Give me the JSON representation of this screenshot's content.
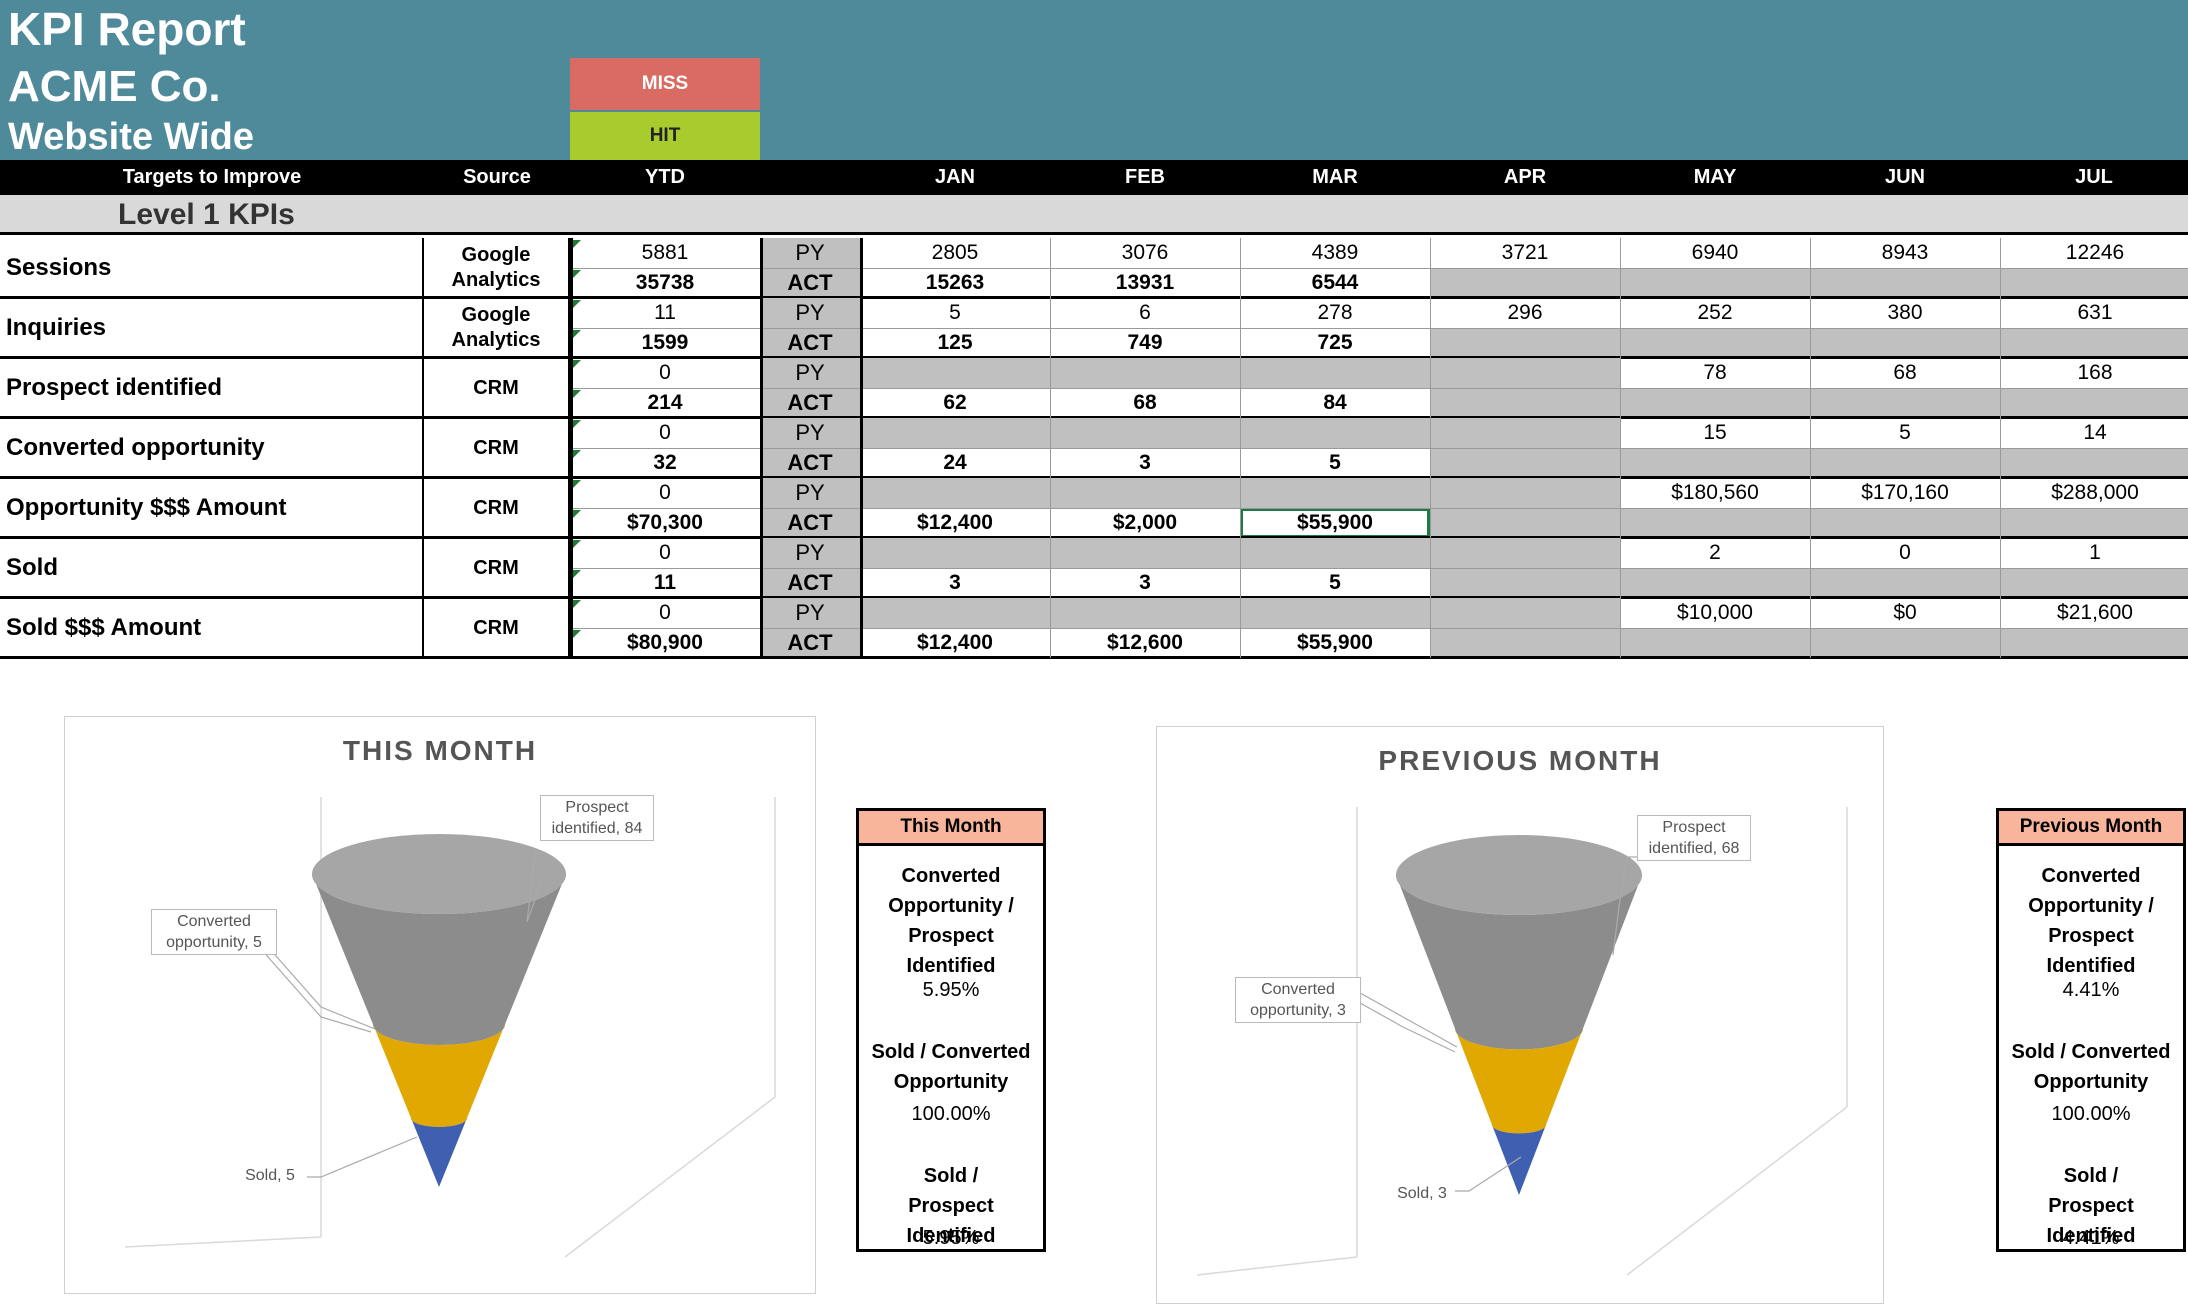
{
  "header": {
    "title": "KPI Report",
    "company": "ACME Co.",
    "scope": "Website Wide",
    "legend_miss": "MISS",
    "legend_hit": "HIT"
  },
  "columns": {
    "targets": "Targets to Improve",
    "source": "Source",
    "ytd": "YTD",
    "months": [
      "JAN",
      "FEB",
      "MAR",
      "APR",
      "MAY",
      "JUN",
      "JUL"
    ]
  },
  "section": "Level 1 KPIs",
  "rows": [
    {
      "metric": "Sessions",
      "source": "Google Analytics",
      "ytd_py": "5881",
      "ytd_act": "35738",
      "py_label": "PY",
      "act_label": "ACT",
      "py": [
        "2805",
        "3076",
        "4389",
        "3721",
        "6940",
        "8943",
        "12246"
      ],
      "act": [
        "15263",
        "13931",
        "6544",
        "",
        "",
        "",
        ""
      ]
    },
    {
      "metric": "Inquiries",
      "source": "Google Analytics",
      "ytd_py": "11",
      "ytd_act": "1599",
      "py_label": "PY",
      "act_label": "ACT",
      "py": [
        "5",
        "6",
        "278",
        "296",
        "252",
        "380",
        "631"
      ],
      "act": [
        "125",
        "749",
        "725",
        "",
        "",
        "",
        ""
      ]
    },
    {
      "metric": "Prospect identified",
      "source": "CRM",
      "ytd_py": "0",
      "ytd_act": "214",
      "py_label": "PY",
      "act_label": "ACT",
      "py": [
        "",
        "",
        "",
        "",
        "78",
        "68",
        "168"
      ],
      "act": [
        "62",
        "68",
        "84",
        "",
        "",
        "",
        ""
      ]
    },
    {
      "metric": "Converted opportunity",
      "source": "CRM",
      "ytd_py": "0",
      "ytd_act": "32",
      "py_label": "PY",
      "act_label": "ACT",
      "py": [
        "",
        "",
        "",
        "",
        "15",
        "5",
        "14"
      ],
      "act": [
        "24",
        "3",
        "5",
        "",
        "",
        "",
        ""
      ]
    },
    {
      "metric": "Opportunity $$$ Amount",
      "source": "CRM",
      "ytd_py": "0",
      "ytd_act": "$70,300",
      "py_label": "PY",
      "act_label": "ACT",
      "py": [
        "",
        "",
        "",
        "",
        "$180,560",
        "$170,160",
        "$288,000"
      ],
      "act": [
        "$12,400",
        "$2,000",
        "$55,900",
        "",
        "",
        "",
        ""
      ]
    },
    {
      "metric": "Sold",
      "source": "CRM",
      "ytd_py": "0",
      "ytd_act": "11",
      "py_label": "PY",
      "act_label": "ACT",
      "py": [
        "",
        "",
        "",
        "",
        "2",
        "0",
        "1"
      ],
      "act": [
        "3",
        "3",
        "5",
        "",
        "",
        "",
        ""
      ]
    },
    {
      "metric": "Sold $$$ Amount",
      "source": "CRM",
      "ytd_py": "0",
      "ytd_act": "$80,900",
      "py_label": "PY",
      "act_label": "ACT",
      "py": [
        "",
        "",
        "",
        "",
        "$10,000",
        "$0",
        "$21,600"
      ],
      "act": [
        "$12,400",
        "$12,600",
        "$55,900",
        "",
        "",
        "",
        ""
      ]
    }
  ],
  "chart_data": [
    {
      "type": "funnel",
      "title": "THIS MONTH",
      "categories": [
        "Prospect identified",
        "Converted opportunity",
        "Sold"
      ],
      "values": [
        84,
        5,
        5
      ],
      "labels": [
        "Prospect identified, 84",
        "Converted opportunity, 5",
        "Sold, 5"
      ],
      "colors": [
        "#8c8c8c",
        "#e0a800",
        "#3f5fb0"
      ]
    },
    {
      "type": "funnel",
      "title": "PREVIOUS MONTH",
      "categories": [
        "Prospect identified",
        "Converted opportunity",
        "Sold"
      ],
      "values": [
        68,
        3,
        3
      ],
      "labels": [
        "Prospect identified, 68",
        "Converted opportunity, 3",
        "Sold, 3"
      ],
      "colors": [
        "#8c8c8c",
        "#e0a800",
        "#3f5fb0"
      ]
    }
  ],
  "ratios": {
    "this_month": {
      "title": "This Month",
      "conv_label": "Converted Opportunity / Prospect Identified",
      "conv_value": "5.95%",
      "sold_conv_label": "Sold / Converted Opportunity",
      "sold_conv_value": "100.00%",
      "sold_prosp_label": "Sold / Prospect Identified",
      "sold_prosp_value": "5.95%"
    },
    "previous_month": {
      "title": "Previous Month",
      "conv_label": "Converted Opportunity / Prospect Identified",
      "conv_value": "4.41%",
      "sold_conv_label": "Sold / Converted Opportunity",
      "sold_conv_value": "100.00%",
      "sold_prosp_label": "Sold / Prospect Identified",
      "sold_prosp_value": "4.41%"
    }
  }
}
